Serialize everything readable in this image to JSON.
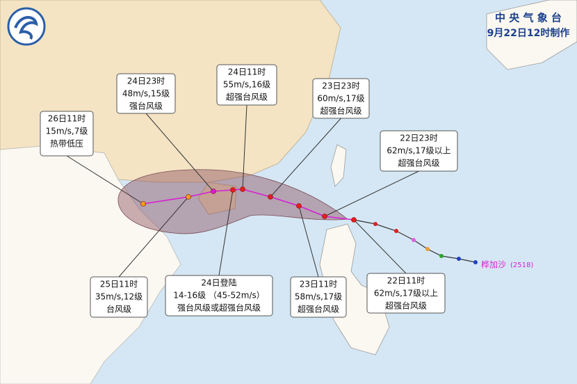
{
  "header": {
    "agency": "中 央 气 象 台",
    "issued": "9月22日12时制作"
  },
  "typhoon": {
    "name": "桦加沙",
    "code": "(2518)"
  },
  "callouts": [
    {
      "lines": [
        "26日11时",
        "15m/s,7级",
        "热带低压"
      ]
    },
    {
      "lines": [
        "24日23时",
        "48m/s,15级",
        "强台风级"
      ]
    },
    {
      "lines": [
        "24日11时",
        "55m/s,16级",
        "超强台风级"
      ]
    },
    {
      "lines": [
        "23日23时",
        "60m/s,17级",
        "超强台风级"
      ]
    },
    {
      "lines": [
        "22日23时",
        "62m/s,17级以上",
        "超强台风级"
      ]
    },
    {
      "lines": [
        "25日11时",
        "35m/s,12级",
        "台风级"
      ]
    },
    {
      "lines": [
        "24日登陆",
        "14-16级 （45-52m/s）",
        "强台风级或超强台风级"
      ]
    },
    {
      "lines": [
        "23日11时",
        "58m/s,17级",
        "超强台风级"
      ]
    },
    {
      "lines": [
        "22日11时",
        "62m/s,17级以上",
        "超强台风级"
      ]
    }
  ]
}
